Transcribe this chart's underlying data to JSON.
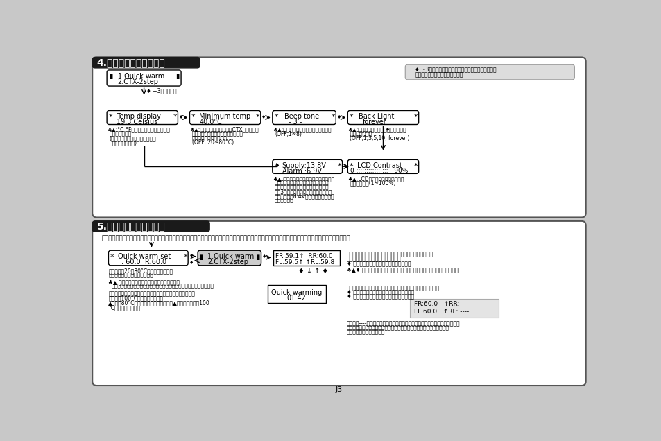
{
  "bg_color": "#c8c8c8",
  "white": "#ffffff",
  "black": "#000000",
  "dark": "#1a1a1a",
  "light_gray": "#e0e0e0",
  "mid_gray": "#d0d0d0",
  "footer": "J3",
  "sec1_title": "4.ユーザーセットアップ",
  "sec2_title": "5.クイックウォーミング"
}
